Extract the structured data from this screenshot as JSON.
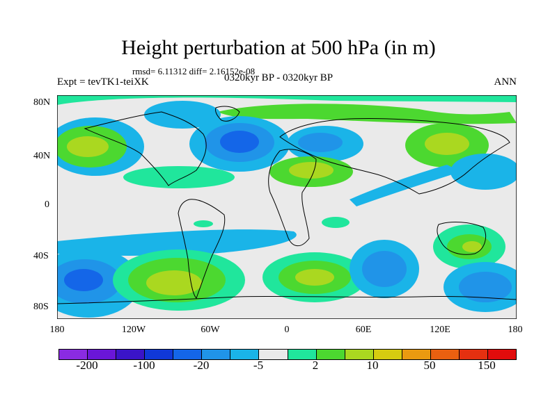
{
  "title": "Height perturbation at 500 hPa (in m)",
  "stats": "rmsd= 6.11312 diff= 2.16152e-08",
  "left_label": "Expt = tevTK1-teiXK",
  "center_label": "0320kyr BP - 0320kyr BP",
  "right_label": "ANN",
  "lat_ticks": [
    "80N",
    "40N",
    "0",
    "40S",
    "80S"
  ],
  "lon_ticks": [
    "180",
    "120W",
    "60W",
    "0",
    "60E",
    "120E",
    "180"
  ],
  "colorbar": {
    "colors": [
      "#8a2be2",
      "#6a16d8",
      "#3a14c8",
      "#1038d8",
      "#1466e8",
      "#2094e8",
      "#1ab4e8",
      "#eaeaea",
      "#20e69c",
      "#4cd830",
      "#aad820",
      "#d6cc10",
      "#ea9a10",
      "#ea6010",
      "#e43010",
      "#e20c0c"
    ],
    "labels": [
      "-200",
      "-100",
      "-20",
      "-5",
      "2",
      "10",
      "50",
      "150"
    ]
  }
}
